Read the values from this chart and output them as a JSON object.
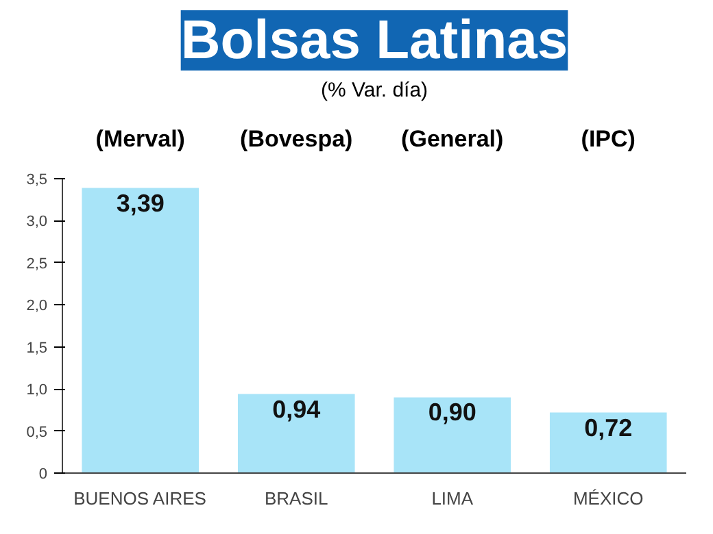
{
  "chart_data": {
    "type": "bar",
    "title": "Bolsas Latinas",
    "subtitle": "(% Var. día)",
    "categories": [
      "BUENOS AIRES",
      "BRASIL",
      "LIMA",
      "MÉXICO"
    ],
    "values": [
      3.39,
      0.94,
      0.9,
      0.72
    ],
    "value_labels": [
      "3,39",
      "0,94",
      "0,90",
      "0,72"
    ],
    "color": "#a8e4f8",
    "ylim": [
      0,
      3.5
    ],
    "yticks": [
      {
        "value": 0,
        "label": "0"
      },
      {
        "value": 0.5,
        "label": "0,5"
      },
      {
        "value": 1,
        "label": "1,0"
      },
      {
        "value": 1.5,
        "label": "1,5"
      },
      {
        "value": 2,
        "label": "2,0"
      },
      {
        "value": 2.5,
        "label": "2,5"
      },
      {
        "value": 3,
        "label": "3,0"
      },
      {
        "value": 3.5,
        "label": "3,5"
      }
    ],
    "annotations": [
      "(Merval)",
      "(Bovespa)",
      "(General)",
      "(IPC)"
    ],
    "grid": false
  }
}
